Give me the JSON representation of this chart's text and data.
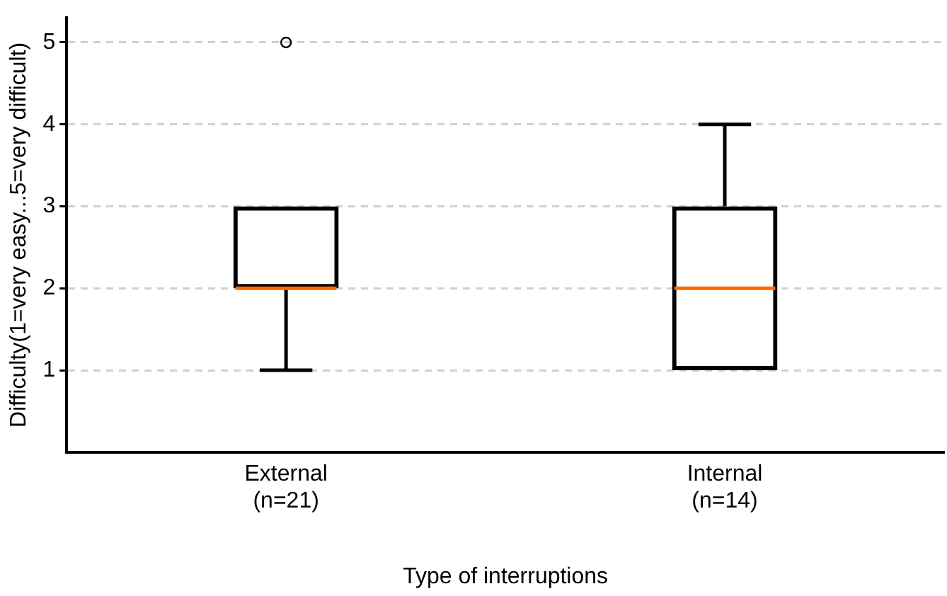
{
  "chart_data": {
    "type": "box",
    "xlabel": "Type of interruptions",
    "ylabel": "Difficulty(1=very easy...5=very difficult)",
    "categories": [
      "External\n(n=21)",
      "Internal\n(n=14)"
    ],
    "boxes": [
      {
        "low": 1,
        "q1": 2,
        "median": 2,
        "q3": 3,
        "high": 3,
        "outliers": [
          5
        ]
      },
      {
        "low": 1,
        "q1": 1,
        "median": 2,
        "q3": 3,
        "high": 4
      }
    ],
    "color": "#000000",
    "ylim": [
      0,
      5.3
    ],
    "yticks": [
      1,
      2,
      3,
      4,
      5
    ],
    "grid": "y",
    "legend": false
  }
}
